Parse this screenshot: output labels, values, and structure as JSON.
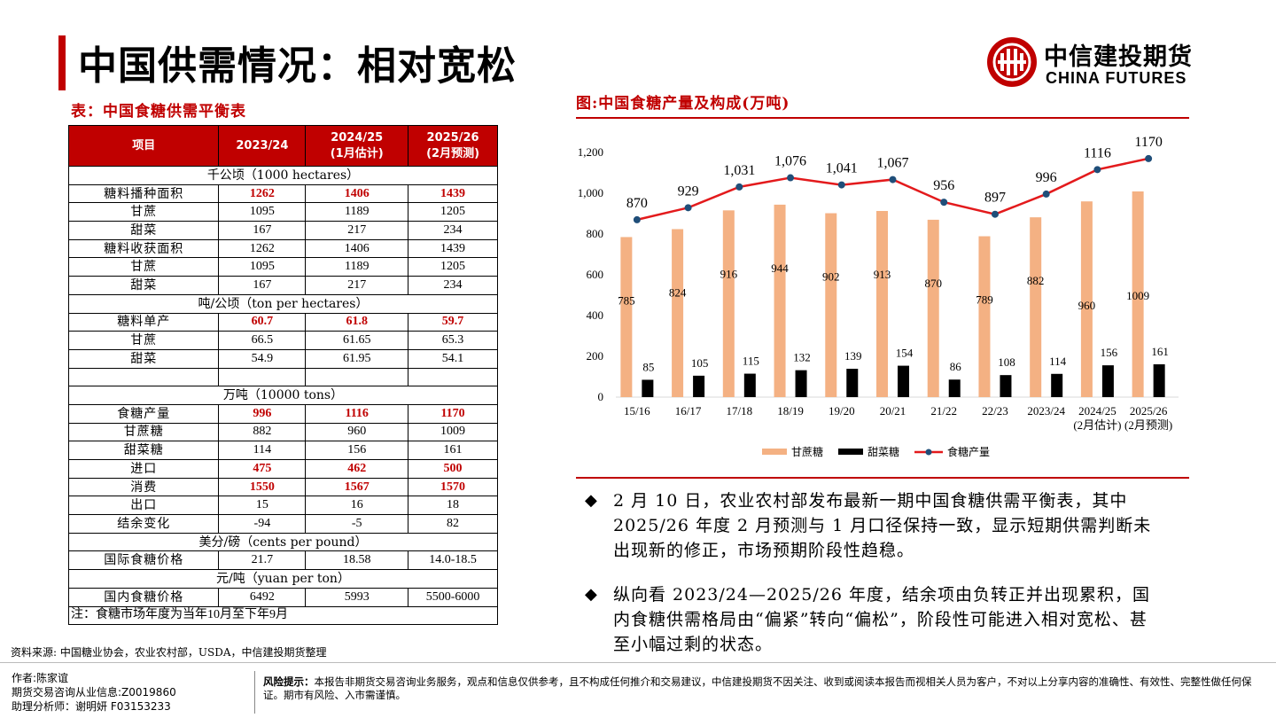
{
  "title": "中国供需情况：相对宽松",
  "logo": {
    "cn": "中信建投期货",
    "en": "CHINA FUTURES"
  },
  "table": {
    "caption": "表：中国食糖供需平衡表",
    "headers": [
      "项目",
      "2023/24",
      "2024/25\n(1月估计)",
      "2025/26\n(2月预测)"
    ],
    "rows": [
      {
        "type": "section",
        "label": "千公顷（1000 hectares）"
      },
      {
        "type": "row",
        "label": "糖料播种面积",
        "values": [
          "1262",
          "1406",
          "1439"
        ],
        "highlight": true
      },
      {
        "type": "row",
        "label": "甘蔗",
        "values": [
          "1095",
          "1189",
          "1205"
        ]
      },
      {
        "type": "row",
        "label": "甜菜",
        "values": [
          "167",
          "217",
          "234"
        ]
      },
      {
        "type": "row",
        "label": "糖料收获面积",
        "values": [
          "1262",
          "1406",
          "1439"
        ]
      },
      {
        "type": "row",
        "label": "甘蔗",
        "values": [
          "1095",
          "1189",
          "1205"
        ]
      },
      {
        "type": "row",
        "label": "甜菜",
        "values": [
          "167",
          "217",
          "234"
        ]
      },
      {
        "type": "section",
        "label": "吨/公顷（ton per hectares）"
      },
      {
        "type": "row",
        "label": "糖料单产",
        "values": [
          "60.7",
          "61.8",
          "59.7"
        ],
        "highlight": true
      },
      {
        "type": "row",
        "label": "甘蔗",
        "values": [
          "66.5",
          "61.65",
          "65.3"
        ]
      },
      {
        "type": "row",
        "label": "甜菜",
        "values": [
          "54.9",
          "61.95",
          "54.1"
        ]
      },
      {
        "type": "row",
        "label": "",
        "values": [
          "",
          "",
          ""
        ]
      },
      {
        "type": "section",
        "label": "万吨（10000 tons）"
      },
      {
        "type": "row",
        "label": "食糖产量",
        "values": [
          "996",
          "1116",
          "1170"
        ],
        "highlight": true
      },
      {
        "type": "row",
        "label": "甘蔗糖",
        "values": [
          "882",
          "960",
          "1009"
        ]
      },
      {
        "type": "row",
        "label": "甜菜糖",
        "values": [
          "114",
          "156",
          "161"
        ]
      },
      {
        "type": "row",
        "label": "进口",
        "values": [
          "475",
          "462",
          "500"
        ],
        "highlight": true
      },
      {
        "type": "row",
        "label": "消费",
        "values": [
          "1550",
          "1567",
          "1570"
        ],
        "highlight": true
      },
      {
        "type": "row",
        "label": "出口",
        "values": [
          "15",
          "16",
          "18"
        ]
      },
      {
        "type": "row",
        "label": "结余变化",
        "values": [
          "-94",
          "-5",
          "82"
        ]
      },
      {
        "type": "section",
        "label": "美分/磅（cents per pound）"
      },
      {
        "type": "row",
        "label": "国际食糖价格",
        "values": [
          "21.7",
          "18.58",
          "14.0-18.5"
        ]
      },
      {
        "type": "section",
        "label": "元/吨（yuan per ton）"
      },
      {
        "type": "row",
        "label": "国内食糖价格",
        "values": [
          "6492",
          "5993",
          "5500-6000"
        ]
      }
    ],
    "note": "注：食糖市场年度为当年10月至下年9月"
  },
  "source": "资料来源: 中国糖业协会，农业农村部，USDA，中信建投期货整理",
  "chart_caption": "图:中国食糖产量及构成(万吨)",
  "chart_data": {
    "type": "bar",
    "title": "中国食糖产量及构成(万吨)",
    "categories": [
      "15/16",
      "16/17",
      "17/18",
      "18/19",
      "19/20",
      "20/21",
      "21/22",
      "22/23",
      "2023/24",
      "2024/25\n(2月估计)",
      "2025/26\n(2月预测)"
    ],
    "series": [
      {
        "name": "甘蔗糖",
        "kind": "bar",
        "color": "#f4b183",
        "values": [
          785,
          824,
          916,
          944,
          902,
          913,
          870,
          789,
          882,
          960,
          1009
        ]
      },
      {
        "name": "甜菜糖",
        "kind": "bar",
        "color": "#000000",
        "values": [
          85,
          105,
          115,
          132,
          139,
          154,
          86,
          108,
          114,
          156,
          161
        ]
      },
      {
        "name": "食糖产量",
        "kind": "line",
        "color": "#e31a1c",
        "values": [
          870,
          929,
          1031,
          1076,
          1041,
          1067,
          956,
          897,
          996,
          1116,
          1170
        ],
        "labels": [
          "870",
          "929",
          "1,031",
          "1,076",
          "1,041",
          "1,067",
          "956",
          "897",
          "996",
          "1116",
          "1170"
        ]
      }
    ],
    "ylim": [
      0,
      1200
    ],
    "yticks": [
      0,
      200,
      400,
      600,
      800,
      1000,
      1200
    ],
    "ytick_labels": [
      "0",
      "200",
      "400",
      "600",
      "800",
      "1,000",
      "1,200"
    ],
    "legend": "bottom"
  },
  "bullets": [
    "2 月 10 日，农业农村部发布最新一期中国食糖供需平衡表，其中 2025/26 年度 2 月预测与 1 月口径保持一致，显示短期供需判断未出现新的修正，市场预期阶段性趋稳。",
    "纵向看 2023/24—2025/26 年度，结余项由负转正并出现累积，国内食糖供需格局由“偏紧”转向“偏松”，阶段性可能进入相对宽松、甚至小幅过剩的状态。"
  ],
  "footer": {
    "author": "作者:陈家谊",
    "license": "期货交易咨询从业信息:Z0019860",
    "assistant": "助理分析师：谢明妍 F03153233",
    "risk_label": "风险提示：",
    "risk_text": "本报告非期货交易咨询业务服务，观点和信息仅供参考，且不构成任何推介和交易建议，中信建投期货不因关注、收到或阅读本报告而视相关人员为客户，不对以上分享内容的准确性、有效性、完整性做任何保证。期市有风险、入市需谨慎。"
  },
  "colors": {
    "accent": "#c00000",
    "cane": "#f4b183",
    "beet": "#000000",
    "line": "#e31a1c"
  }
}
